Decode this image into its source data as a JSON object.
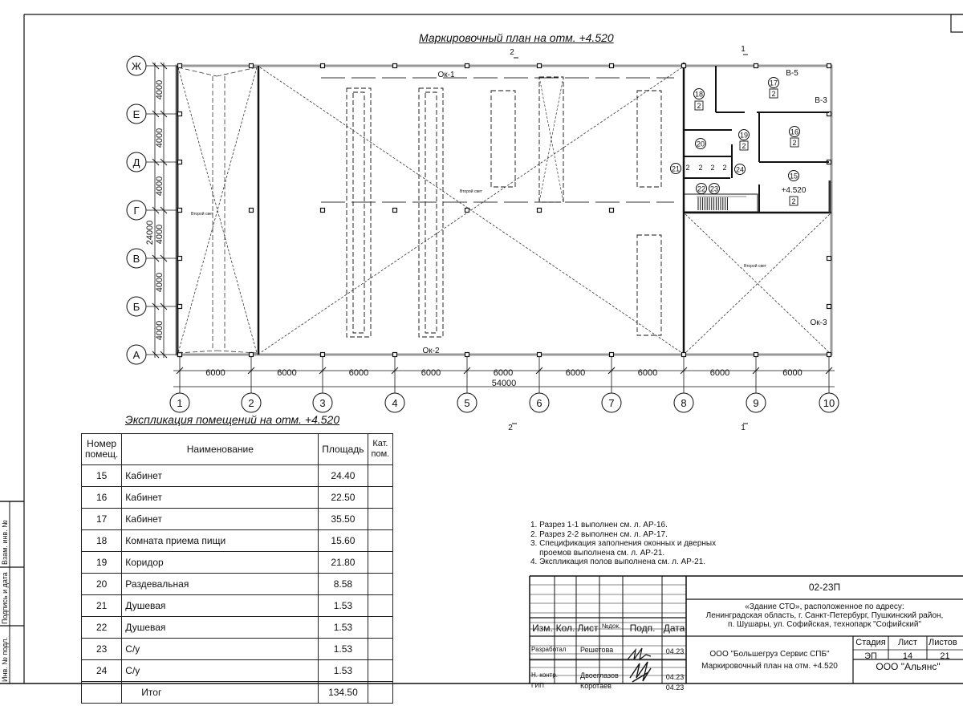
{
  "plan": {
    "title": "Маркировочный план на отм. +4.520",
    "axes_x": [
      "1",
      "2",
      "3",
      "4",
      "5",
      "6",
      "7",
      "8",
      "9",
      "10"
    ],
    "axes_y": [
      "Ж",
      "Е",
      "Д",
      "Г",
      "В",
      "Б",
      "А"
    ],
    "dims_x": [
      "6000",
      "6000",
      "6000",
      "6000",
      "6000",
      "6000",
      "6000",
      "6000",
      "6000"
    ],
    "dim_x_total": "54000",
    "dims_y": [
      "4000",
      "4000",
      "4000",
      "4000",
      "4000",
      "4000"
    ],
    "dim_y_total": "24000",
    "section_marks": {
      "s1_top": "1",
      "s2_top": "2",
      "s1_bottom": "1",
      "s2_bottom": "2"
    },
    "labels": {
      "ok1": "Ок-1",
      "ok2": "Ок-2",
      "ok3": "Ок-3",
      "v5": "В-5",
      "v3": "В-3",
      "second_light": "Второй свет",
      "level": "+4.520"
    },
    "rooms": [
      {
        "num": "18",
        "cat": "2"
      },
      {
        "num": "17",
        "cat": "2"
      },
      {
        "num": "19",
        "cat": "2"
      },
      {
        "num": "16",
        "cat": "2"
      },
      {
        "num": "20"
      },
      {
        "num": "15",
        "cat": "2"
      },
      {
        "num": "21",
        "cat": "2"
      },
      {
        "num": "22",
        "cat": "2"
      },
      {
        "num": "23",
        "cat": "2"
      },
      {
        "num": "24",
        "cat": "2"
      }
    ]
  },
  "explication": {
    "title": "Экспликация помещений на отм. +4.520",
    "headers": [
      "Номер помещ.",
      "Наименование",
      "Площадь",
      "Кат. пом."
    ],
    "rows": [
      [
        "15",
        "Кабинет",
        "24.40",
        ""
      ],
      [
        "16",
        "Кабинет",
        "22.50",
        ""
      ],
      [
        "17",
        "Кабинет",
        "35.50",
        ""
      ],
      [
        "18",
        "Комната приема пищи",
        "15.60",
        ""
      ],
      [
        "19",
        "Коридор",
        "21.80",
        ""
      ],
      [
        "20",
        "Раздевальная",
        "8.58",
        ""
      ],
      [
        "21",
        "Душевая",
        "1.53",
        ""
      ],
      [
        "22",
        "Душевая",
        "1.53",
        ""
      ],
      [
        "23",
        "С/у",
        "1.53",
        ""
      ],
      [
        "24",
        "С/у",
        "1.53",
        ""
      ]
    ],
    "total_label": "Итог",
    "total_value": "134.50"
  },
  "notes": [
    "1. Разрез 1-1 выполнен см. л. АР-16.",
    "2. Разрез 2-2 выполнен см. л. АР-17.",
    "3. Спецификация заполнения оконных и дверных\n    проемов выполнена см. л. АР-21.",
    "4. Экспликация полов выполнена см. л. АР-21."
  ],
  "title_block": {
    "code": "02-23П",
    "object": "«Здание СТО», расположенное по адресу:\nЛенинградская область, г. Санкт-Петербург, Пушкинский район,\nп. Шушары, ул. Софийская, технопарк \"Софийский\"",
    "cols": [
      "Изм.",
      "Кол.",
      "Лист",
      "№док.",
      "Подп.",
      "Дата"
    ],
    "people": [
      {
        "role": "Разработал",
        "name": "Решетова",
        "date": "04.23"
      },
      {
        "role": "Н. контр.",
        "name": "Двоеглазов",
        "date": "04.23"
      },
      {
        "role": "ГИП",
        "name": "Коротаев",
        "date": "04.23"
      }
    ],
    "designer": "ООО \"Большегруз Сервис СПБ\"",
    "sheet_title": "Маркировочный план на отм. +4.520",
    "stage_label": "Стадия",
    "stage": "ЭП",
    "sheet_label": "Лист",
    "sheet": "14",
    "sheets_label": "Листов",
    "sheets": "21",
    "client": "ООО \"Альянс\""
  },
  "side_stamp": [
    "Взам. инв. №",
    "Подпись и дата",
    "Инв. № подл."
  ]
}
